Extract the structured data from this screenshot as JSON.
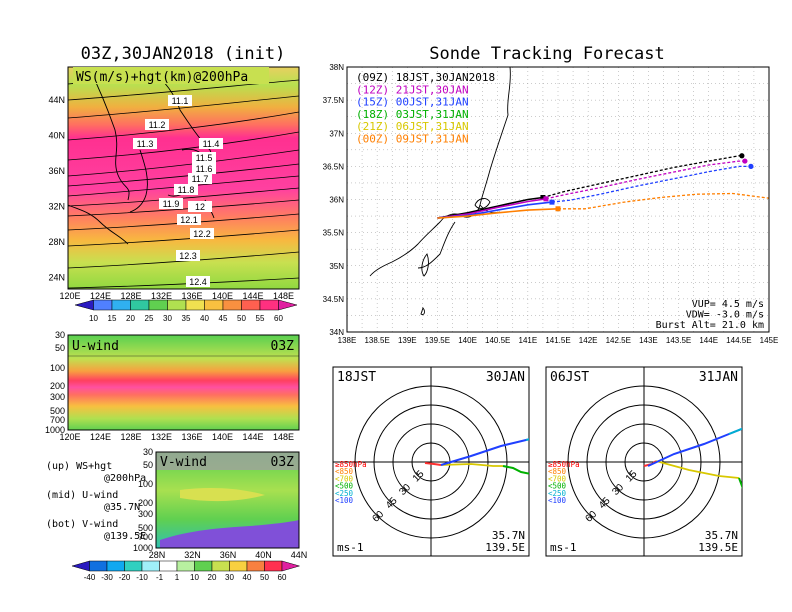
{
  "left_panel": {
    "title": "03Z,30JAN2018 (init)",
    "map_label": "WS(m/s)+hgt(km)@200hPa",
    "lat_labels": [
      "44N",
      "40N",
      "36N",
      "32N",
      "28N",
      "24N"
    ],
    "lon_labels": [
      "120E",
      "124E",
      "128E",
      "132E",
      "136E",
      "140E",
      "144E",
      "148E"
    ],
    "contour_labels": [
      "11.1",
      "11.2",
      "11.3",
      "11.4",
      "11.5",
      "11.6",
      "11.7",
      "11.8",
      "11.9",
      "12",
      "12.1",
      "12.2",
      "12.3",
      "12.4"
    ],
    "ws_colorbar_labels": [
      "10",
      "15",
      "20",
      "25",
      "30",
      "35",
      "40",
      "45",
      "50",
      "55",
      "60"
    ],
    "uwind": {
      "label": "U-wind",
      "time": "03Z",
      "y_labels": [
        "30",
        "50",
        "100",
        "200",
        "300",
        "500",
        "700",
        "1000"
      ],
      "x_labels": [
        "120E",
        "124E",
        "128E",
        "132E",
        "136E",
        "140E",
        "144E",
        "148E"
      ]
    },
    "vwind": {
      "label": "V-wind",
      "time": "03Z",
      "y_labels": [
        "30",
        "50",
        "100",
        "200",
        "300",
        "500",
        "700",
        "1000"
      ],
      "x_labels": [
        "28N",
        "32N",
        "36N",
        "40N",
        "44N"
      ]
    },
    "legend_notes": [
      [
        "(up) WS+hgt",
        "@200hPa"
      ],
      [
        "(mid) U-wind",
        "@35.7N"
      ],
      [
        "(bot) V-wind",
        "@139.5E"
      ]
    ],
    "wind_colorbar_labels": [
      "-40",
      "-30",
      "-20",
      "-10",
      "-1",
      "1",
      "10",
      "20",
      "30",
      "40",
      "50",
      "60"
    ]
  },
  "chart_data": {
    "type": "line",
    "title": "Sonde Tracking Forecast",
    "xlabel": "",
    "ylabel": "",
    "xlim": [
      138,
      145
    ],
    "ylim": [
      34,
      38
    ],
    "x_tick_labels": [
      "138E",
      "138.5E",
      "139E",
      "139.5E",
      "140E",
      "140.5E",
      "141E",
      "141.5E",
      "142E",
      "142.5E",
      "143E",
      "143.5E",
      "144E",
      "144.5E",
      "145E"
    ],
    "y_tick_labels": [
      "34N",
      "34.5N",
      "35N",
      "35.5N",
      "36N",
      "36.5N",
      "37N",
      "37.5N",
      "38N"
    ],
    "series": [
      {
        "name": "(09Z) 18JST,30JAN2018",
        "color": "#000000",
        "lon": [
          139.5,
          140.0,
          140.5,
          141.0,
          141.25,
          141.6,
          142.2,
          142.8,
          143.4,
          144.0,
          144.5,
          144.55
        ],
        "lat": [
          35.72,
          35.8,
          35.9,
          36.0,
          36.03,
          36.12,
          36.24,
          36.36,
          36.48,
          36.58,
          36.66,
          36.66
        ]
      },
      {
        "name": "(12Z) 21JST,30JAN",
        "color": "#c000c0",
        "lon": [
          139.5,
          140.0,
          140.5,
          141.0,
          141.3,
          141.65,
          142.2,
          142.8,
          143.4,
          144.0,
          144.5,
          144.6
        ],
        "lat": [
          35.72,
          35.78,
          35.88,
          35.97,
          36.01,
          36.08,
          36.18,
          36.3,
          36.41,
          36.52,
          36.58,
          36.58
        ]
      },
      {
        "name": "(15Z) 00JST,31JAN",
        "color": "#2040ff",
        "lon": [
          139.5,
          140.0,
          140.5,
          141.0,
          141.4,
          141.7,
          142.2,
          142.8,
          143.4,
          144.0,
          144.5,
          144.7
        ],
        "lat": [
          35.72,
          35.76,
          35.84,
          35.92,
          35.96,
          35.99,
          36.08,
          36.2,
          36.31,
          36.42,
          36.5,
          36.5
        ]
      },
      {
        "name": "(18Z) 03JST,31JAN",
        "color": "#00b000",
        "lon": [],
        "lat": []
      },
      {
        "name": "(21Z) 06JST,31JAN",
        "color": "#d8c800",
        "lon": [],
        "lat": []
      },
      {
        "name": "(00Z) 09JST,31JAN",
        "color": "#ff7f00",
        "lon": [
          139.5,
          140.0,
          140.5,
          141.0,
          141.5,
          141.95,
          142.6,
          143.2,
          143.8,
          144.4,
          145.0
        ],
        "lat": [
          35.72,
          35.75,
          35.8,
          35.84,
          35.86,
          35.86,
          35.96,
          36.03,
          36.08,
          36.09,
          36.02
        ]
      }
    ],
    "params": [
      "VUP= 4.5 m/s",
      "VDW= -3.0 m/s",
      "Burst Alt= 21.0 km"
    ]
  },
  "polar_left": {
    "time": "18JST",
    "date": "30JAN",
    "lat": "35.7N",
    "lon": "139.5E",
    "unit": "ms-1"
  },
  "polar_right": {
    "time": "06JST",
    "date": "31JAN",
    "lat": "35.7N",
    "lon": "139.5E",
    "unit": "ms-1"
  },
  "polar_rings": [
    "15",
    "30",
    "45",
    "60"
  ],
  "polar_legend": [
    {
      "label": "≥850hPa",
      "color": "#ff0000"
    },
    {
      "label": "<850",
      "color": "#ff7f00"
    },
    {
      "label": "<700",
      "color": "#d8c800"
    },
    {
      "label": "<500",
      "color": "#00b000"
    },
    {
      "label": "<250",
      "color": "#00b0d0"
    },
    {
      "label": "<100",
      "color": "#2040ff"
    }
  ]
}
